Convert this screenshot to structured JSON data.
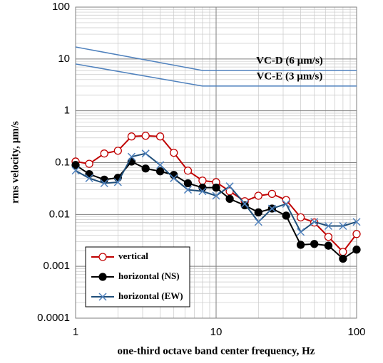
{
  "chart_data": {
    "type": "line",
    "x_label": "one-third octave band center frequency, Hz",
    "y_label": "rms velocity, µm/s",
    "log_x": true,
    "log_y": true,
    "grid": true,
    "minor_grid": true,
    "xlim": [
      1,
      100
    ],
    "ylim": [
      0.0001,
      100
    ],
    "xticks": [
      1,
      10,
      100
    ],
    "yticks": [
      0.0001,
      0.001,
      0.01,
      0.1,
      1,
      10,
      100
    ],
    "legend": "lower left",
    "x": [
      1,
      1.25,
      1.6,
      2,
      2.5,
      3.15,
      4,
      5,
      6.3,
      8,
      10,
      12.5,
      16,
      20,
      25,
      31.5,
      40,
      50,
      63,
      80,
      100
    ],
    "series": [
      {
        "name": "vertical",
        "color": "#c00000",
        "marker": "open-circle",
        "values": [
          0.105,
          0.095,
          0.15,
          0.17,
          0.32,
          0.33,
          0.32,
          0.155,
          0.07,
          0.045,
          0.042,
          0.028,
          0.018,
          0.023,
          0.025,
          0.019,
          0.0088,
          0.007,
          0.0037,
          0.0019,
          0.0042
        ]
      },
      {
        "name": "horizontal (NS)",
        "color": "#000000",
        "marker": "filled-circle",
        "values": [
          0.09,
          0.06,
          0.047,
          0.051,
          0.105,
          0.077,
          0.068,
          0.058,
          0.04,
          0.033,
          0.033,
          0.02,
          0.015,
          0.011,
          0.013,
          0.0095,
          0.0026,
          0.0027,
          0.0025,
          0.0014,
          0.0021
        ]
      },
      {
        "name": "horizontal (EW)",
        "color": "#1f4e79",
        "marker": "x",
        "values": [
          0.07,
          0.05,
          0.04,
          0.042,
          0.13,
          0.15,
          0.09,
          0.05,
          0.03,
          0.028,
          0.023,
          0.035,
          0.016,
          0.0072,
          0.013,
          0.016,
          0.0046,
          0.0072,
          0.006,
          0.006,
          0.0072
        ]
      }
    ],
    "reference_lines": [
      {
        "label": "VC-D (6 µm/s)",
        "color": "#4f81bd",
        "x": [
          1,
          8,
          100
        ],
        "values": [
          17,
          6,
          6
        ]
      },
      {
        "label": "VC-E (3 µm/s)",
        "color": "#4f81bd",
        "x": [
          1,
          8,
          100
        ],
        "values": [
          8,
          3,
          3
        ]
      }
    ]
  }
}
